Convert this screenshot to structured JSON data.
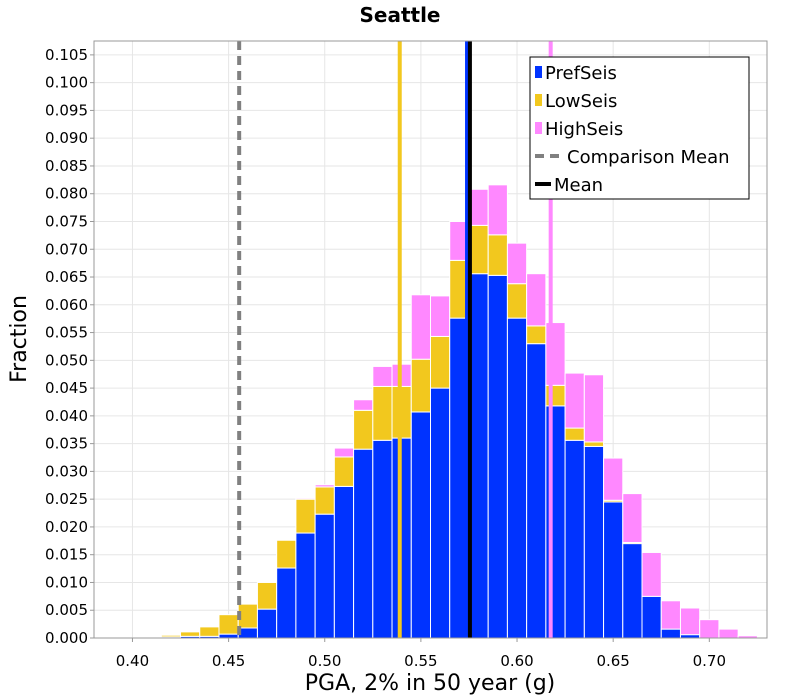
{
  "chart_data": {
    "type": "bar",
    "title": "Seattle",
    "xlabel": "PGA, 2% in 50 year (g)",
    "ylabel": "Fraction",
    "xlim": [
      0.38,
      0.73
    ],
    "ylim": [
      0,
      0.1075
    ],
    "bin_width": 0.01,
    "stacked": true,
    "grid": true,
    "legend_position": "top-right",
    "x_ticks": [
      "0.40",
      "0.45",
      "0.50",
      "0.55",
      "0.60",
      "0.65",
      "0.70"
    ],
    "y_ticks": [
      "0.000",
      "0.005",
      "0.010",
      "0.015",
      "0.020",
      "0.025",
      "0.030",
      "0.035",
      "0.040",
      "0.045",
      "0.050",
      "0.055",
      "0.060",
      "0.065",
      "0.070",
      "0.075",
      "0.080",
      "0.085",
      "0.090",
      "0.095",
      "0.100",
      "0.105"
    ],
    "bin_centers": [
      0.41,
      0.42,
      0.43,
      0.44,
      0.45,
      0.46,
      0.47,
      0.48,
      0.49,
      0.5,
      0.51,
      0.52,
      0.53,
      0.54,
      0.55,
      0.56,
      0.57,
      0.58,
      0.59,
      0.6,
      0.61,
      0.62,
      0.63,
      0.64,
      0.65,
      0.66,
      0.67,
      0.68,
      0.69,
      0.7,
      0.71,
      0.72
    ],
    "series": [
      {
        "name": "PrefSeis",
        "color": "#0033ff",
        "values": [
          0.0001,
          0.0002,
          0.0003,
          0.0003,
          0.0007,
          0.0018,
          0.0052,
          0.0126,
          0.0189,
          0.0223,
          0.0273,
          0.034,
          0.0356,
          0.036,
          0.0407,
          0.045,
          0.0576,
          0.0656,
          0.0653,
          0.0576,
          0.053,
          0.0418,
          0.0356,
          0.0345,
          0.0245,
          0.017,
          0.0075,
          0.0016,
          0.0006,
          0,
          0,
          0
        ]
      },
      {
        "name": "LowSeis",
        "color": "#f2c81e",
        "values": [
          0.0001,
          0.0003,
          0.0008,
          0.0017,
          0.0035,
          0.0043,
          0.0048,
          0.005,
          0.0061,
          0.0049,
          0.0053,
          0.007,
          0.0097,
          0.0093,
          0.0095,
          0.0093,
          0.0104,
          0.0087,
          0.0073,
          0.0062,
          0.0032,
          0.0037,
          0.0022,
          0.0008,
          0.0003,
          0.0002,
          0,
          0,
          0,
          0,
          0,
          0
        ]
      },
      {
        "name": "HighSeis",
        "color": "#ff88ff",
        "values": [
          0,
          0,
          0,
          0,
          0,
          0,
          0,
          0,
          0.0002,
          0.0004,
          0.0016,
          0.0019,
          0.0036,
          0.004,
          0.0116,
          0.0073,
          0.007,
          0.0065,
          0.009,
          0.0073,
          0.0094,
          0.0113,
          0.0099,
          0.0121,
          0.0076,
          0.0088,
          0.0079,
          0.0051,
          0.0048,
          0.0033,
          0.0016,
          0.0004
        ]
      }
    ],
    "vertical_lines": [
      {
        "name": "LowSeis mean",
        "x": 0.539,
        "color": "#f2c81e",
        "style": "solid"
      },
      {
        "name": "PrefSeis mean",
        "x": 0.574,
        "color": "#0033ff",
        "style": "solid"
      },
      {
        "name": "HighSeis mean",
        "x": 0.6175,
        "color": "#ff88ff",
        "style": "solid"
      },
      {
        "name": "Comparison Mean",
        "x": 0.4555,
        "color": "#808080",
        "style": "dashed"
      },
      {
        "name": "Mean",
        "x": 0.5755,
        "color": "#000000",
        "style": "solid"
      }
    ],
    "legend": [
      {
        "label": "PrefSeis",
        "color": "#0033ff",
        "kind": "box"
      },
      {
        "label": "LowSeis",
        "color": "#f2c81e",
        "kind": "box"
      },
      {
        "label": "HighSeis",
        "color": "#ff88ff",
        "kind": "box"
      },
      {
        "label": "Comparison Mean",
        "color": "#808080",
        "kind": "dashed-line"
      },
      {
        "label": "Mean",
        "color": "#000000",
        "kind": "line"
      }
    ]
  }
}
